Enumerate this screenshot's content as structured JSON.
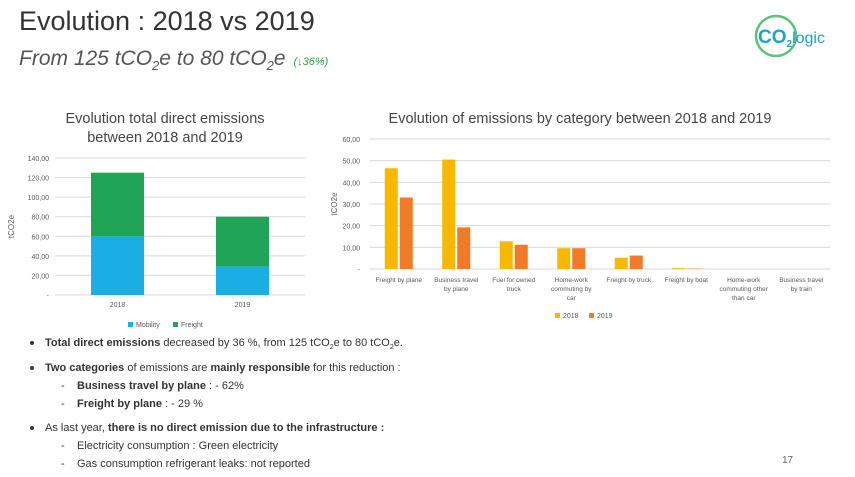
{
  "header": {
    "title": "Evolution : 2018 vs 2019",
    "subtitle_pre": "From 125 tCO",
    "subtitle_sub1": "2",
    "subtitle_mid": "e to 80 tCO",
    "subtitle_sub2": "2",
    "subtitle_post": "e",
    "subtitle_change": "(↓36%)"
  },
  "logo": {
    "text_main": "CO",
    "text_sub": "2",
    "text_post": "logic",
    "brand_color": "#1aa6c8",
    "ring_color": "#5cc27a"
  },
  "colors": {
    "mobility": "#1aaee5",
    "freight": "#20a457",
    "y2018": "#f7b900",
    "y2019": "#f07a28"
  },
  "chart_data": [
    {
      "type": "bar",
      "stacked": true,
      "title_line1": "Evolution total direct emissions",
      "title_line2": "between 2018 and 2019",
      "ylabel": "tCO2e",
      "ylim": [
        0,
        140
      ],
      "yticks": [
        "-",
        "20,00",
        "40,00",
        "60,00",
        "80,00",
        "100,00",
        "120,00",
        "140,00"
      ],
      "categories": [
        "2018",
        "2019"
      ],
      "series": [
        {
          "name": "Mobility",
          "values": [
            60,
            29
          ]
        },
        {
          "name": "Freight",
          "values": [
            65,
            51
          ]
        }
      ],
      "legend": "bottom"
    },
    {
      "type": "bar",
      "title": "Evolution of emissions by category between 2018 and 2019",
      "ylabel": "tCO2e",
      "ylim": [
        0,
        60
      ],
      "yticks": [
        "-",
        "10,00",
        "20,00",
        "30,00",
        "40,00",
        "50,00",
        "60,00"
      ],
      "categories": [
        [
          "Freight by plane"
        ],
        [
          "Business travel",
          "by plane"
        ],
        [
          "Fuel for owned",
          "truck"
        ],
        [
          "Home-work",
          "commuting by",
          "car"
        ],
        [
          "Freight by truck"
        ],
        [
          "Freight by boat"
        ],
        [
          "Home-work",
          "commuting other",
          "than car"
        ],
        [
          "Business travel",
          "by train"
        ]
      ],
      "series": [
        {
          "name": "2018",
          "values": [
            46.5,
            50.5,
            12.8,
            9.6,
            5.2,
            0.4,
            0,
            0
          ]
        },
        {
          "name": "2019",
          "values": [
            33,
            19.2,
            11.2,
            9.6,
            6.2,
            0.2,
            0,
            0
          ]
        }
      ],
      "legend": "bottom"
    }
  ],
  "bullets": {
    "b1_bold": "Total direct emissions",
    "b1_a": " decreased by 36 %, from 125 tCO",
    "b1_sub1": "2",
    "b1_b": "e to 80 tCO",
    "b1_sub2": "2",
    "b1_c": "e.",
    "b2_bold1": "Two categories",
    "b2_a": " of emissions are ",
    "b2_bold2": "mainly responsible",
    "b2_b": " for this reduction :",
    "b2_sub1_bold": "Business travel by plane",
    "b2_sub1_rest": " : - 62%",
    "b2_sub2_bold": "Freight by plane",
    "b2_sub2_rest": " : - 29 %",
    "b3_a": "As last year, ",
    "b3_bold": "there is no direct emission due to the infrastructure :",
    "b3_sub1": "Electricity consumption : Green electricity",
    "b3_sub2": "Gas consumption refrigerant leaks: not reported",
    "dash": "-"
  },
  "page_number": "17"
}
